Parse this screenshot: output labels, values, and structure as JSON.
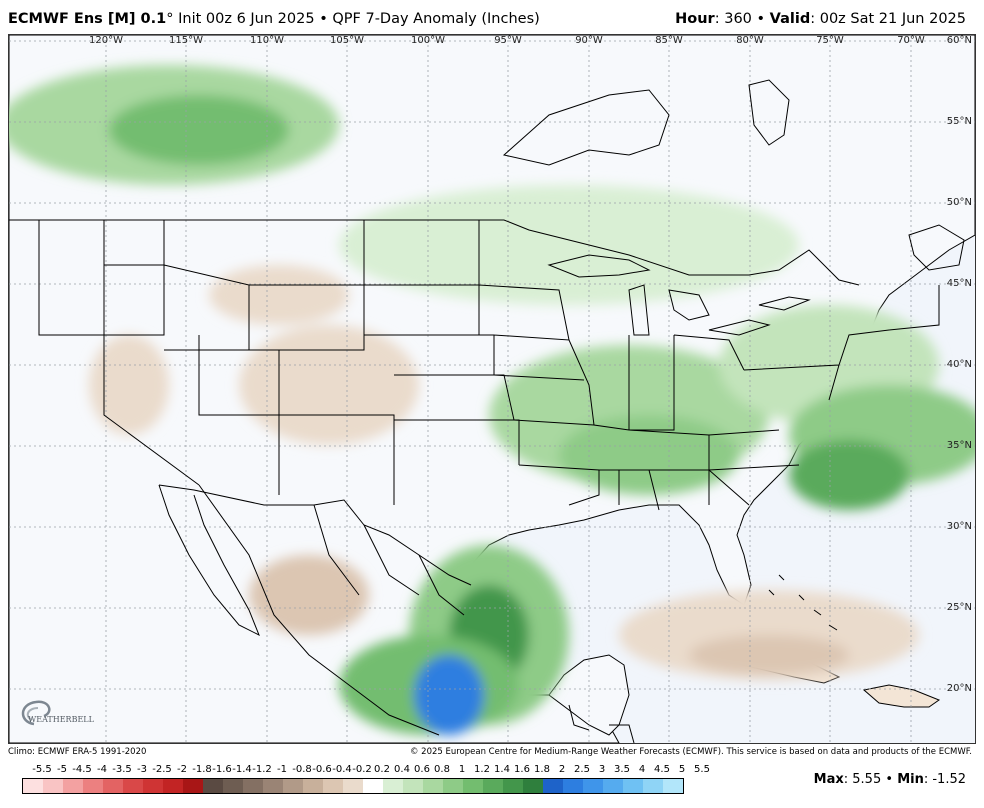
{
  "header": {
    "model": "ECMWF Ens [M] 0.1",
    "degree": "°",
    "init": "Init 00z 6 Jun 2025",
    "sep": "•",
    "product": "QPF 7-Day Anomaly (Inches)",
    "hour_label": "Hour",
    "hour_value": ": 360",
    "valid_label": "Valid",
    "valid_value": ": 00z Sat 21 Jun 2025"
  },
  "map": {
    "lon_labels": [
      "120°W",
      "115°W",
      "110°W",
      "105°W",
      "100°W",
      "95°W",
      "90°W",
      "85°W",
      "80°W",
      "75°W",
      "70°W"
    ],
    "lat_labels": [
      "60°N",
      "55°N",
      "50°N",
      "45°N",
      "40°N",
      "35°N",
      "30°N",
      "25°N",
      "20°N"
    ],
    "logo_text": "WEATHERBELL",
    "colors": {
      "ocean": "#f1f5fb",
      "land_base": "#f7f9fc",
      "green_light": "#c9e7c4",
      "green_mid": "#8ecb8a",
      "green_dark": "#4f9f5a",
      "brown_light": "#ecd9c6",
      "brown_mid": "#d9b79b",
      "blue_heavy": "#3b86d6"
    }
  },
  "footer": {
    "climo": "Climo: ECMWF ERA-5 1991-2020",
    "copyright": "© 2025 European Centre for Medium-Range Weather Forecasts (ECMWF). This service is based on data and products of the ECMWF."
  },
  "colorbar": {
    "labels": [
      "-5.5",
      "-5",
      "-4.5",
      "-4",
      "-3.5",
      "-3",
      "-2.5",
      "-2",
      "-1.8",
      "-1.6",
      "-1.4",
      "-1.2",
      "-1",
      "-0.8",
      "-0.6",
      "-0.4",
      "-0.2",
      "0.2",
      "0.4",
      "0.6",
      "0.8",
      "1",
      "1.2",
      "1.4",
      "1.6",
      "1.8",
      "2",
      "2.5",
      "3",
      "3.5",
      "4",
      "4.5",
      "5",
      "5.5"
    ],
    "colors": [
      "#fde0e0",
      "#f9c4c4",
      "#f3a1a1",
      "#ec8080",
      "#e36363",
      "#d94848",
      "#cf3434",
      "#c22424",
      "#a81616",
      "#5a4a42",
      "#6e5d52",
      "#847063",
      "#9a8475",
      "#b19a88",
      "#c8b09b",
      "#dcc6b2",
      "#eadbcc",
      "#ffffff",
      "#d9efd4",
      "#c3e4bb",
      "#a9d8a0",
      "#8ecb87",
      "#73bd6f",
      "#5aaa5c",
      "#43964b",
      "#2f7f3d",
      "#1e63c9",
      "#2d7ee0",
      "#3f95ea",
      "#55abef",
      "#6fc1f3",
      "#8fd4f6",
      "#b2e6fa"
    ]
  },
  "stats": {
    "max_label": "Max",
    "max_value": ": 5.55",
    "sep": "•",
    "min_label": "Min",
    "min_value": ": -1.52"
  }
}
